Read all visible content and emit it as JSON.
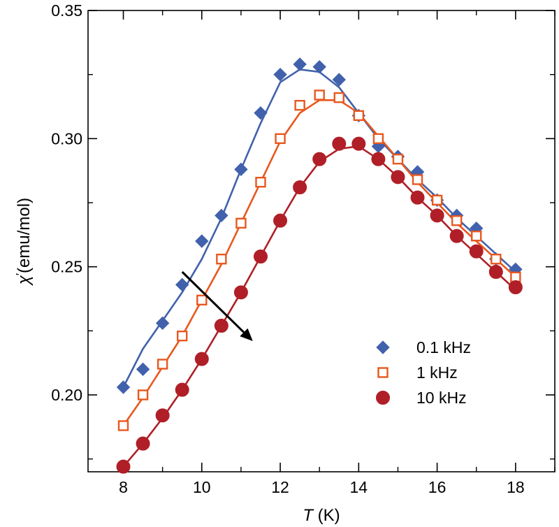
{
  "chart_data": {
    "type": "scatter",
    "title": "",
    "xlabel_italic": "T",
    "xlabel_unit": " (K)",
    "ylabel_symbol": "χ",
    "ylabel_prime": "′",
    "ylabel_unit": "(emu/mol)",
    "xlim": [
      7.1,
      19.0
    ],
    "ylim": [
      0.17,
      0.35
    ],
    "xticks": [
      8,
      10,
      12,
      14,
      16,
      18
    ],
    "xtick_labels": [
      "8",
      "10",
      "12",
      "14",
      "16",
      "18"
    ],
    "yticks": [
      0.2,
      0.25,
      0.3,
      0.35
    ],
    "ytick_labels": [
      "0.20",
      "0.25",
      "0.30",
      "0.35"
    ],
    "legend_position": "bottom-right",
    "arrow": {
      "from": [
        9.5,
        0.248
      ],
      "to": [
        11.3,
        0.221
      ],
      "color": "#000000"
    },
    "series": [
      {
        "name": "0.1 kHz",
        "marker": "diamond",
        "color": "#4161ac",
        "fill": true,
        "x": [
          8,
          8.5,
          9,
          9.5,
          10,
          10.5,
          11,
          11.5,
          12,
          12.5,
          13,
          13.5,
          14,
          14.5,
          15,
          15.5,
          16,
          16.5,
          17,
          17.5,
          18
        ],
        "y": [
          0.203,
          0.21,
          0.228,
          0.243,
          0.26,
          0.27,
          0.288,
          0.31,
          0.325,
          0.329,
          0.328,
          0.323,
          0.309,
          0.297,
          0.293,
          0.287,
          0.276,
          0.27,
          0.265,
          0.253,
          0.249
        ],
        "fit_x": [
          8,
          8.5,
          9,
          9.5,
          10,
          10.5,
          11,
          11.5,
          12,
          12.5,
          13,
          13.5,
          14,
          14.5,
          15,
          15.5,
          16,
          16.5,
          17,
          17.5,
          18
        ],
        "fit_y": [
          0.203,
          0.218,
          0.229,
          0.24,
          0.253,
          0.269,
          0.288,
          0.306,
          0.322,
          0.327,
          0.326,
          0.32,
          0.31,
          0.3,
          0.292,
          0.284,
          0.277,
          0.269,
          0.262,
          0.255,
          0.248
        ]
      },
      {
        "name": "1 kHz",
        "marker": "square-open",
        "color": "#e8581f",
        "fill": false,
        "x": [
          8,
          8.5,
          9,
          9.5,
          10,
          10.5,
          11,
          11.5,
          12,
          12.5,
          13,
          13.5,
          14,
          14.5,
          15,
          15.5,
          16,
          16.5,
          17,
          17.5,
          18
        ],
        "y": [
          0.188,
          0.2,
          0.212,
          0.223,
          0.237,
          0.253,
          0.267,
          0.283,
          0.3,
          0.313,
          0.317,
          0.316,
          0.309,
          0.3,
          0.292,
          0.284,
          0.276,
          0.268,
          0.262,
          0.253,
          0.246
        ],
        "fit_x": [
          8,
          8.5,
          9,
          9.5,
          10,
          10.5,
          11,
          11.5,
          12,
          12.5,
          13,
          13.5,
          14,
          14.5,
          15,
          15.5,
          16,
          16.5,
          17,
          17.5,
          18
        ],
        "fit_y": [
          0.188,
          0.199,
          0.211,
          0.223,
          0.237,
          0.251,
          0.267,
          0.283,
          0.299,
          0.31,
          0.315,
          0.315,
          0.31,
          0.301,
          0.292,
          0.283,
          0.275,
          0.267,
          0.26,
          0.253,
          0.246
        ]
      },
      {
        "name": "10 kHz",
        "marker": "circle",
        "color": "#b01f27",
        "fill": true,
        "x": [
          8,
          8.5,
          9,
          9.5,
          10,
          10.5,
          11,
          11.5,
          12,
          12.5,
          13,
          13.5,
          14,
          14.5,
          15,
          15.5,
          16,
          16.5,
          17,
          17.5,
          18
        ],
        "y": [
          0.172,
          0.181,
          0.192,
          0.202,
          0.214,
          0.227,
          0.24,
          0.254,
          0.268,
          0.281,
          0.292,
          0.298,
          0.298,
          0.292,
          0.285,
          0.277,
          0.27,
          0.262,
          0.256,
          0.248,
          0.242
        ],
        "fit_x": [
          8,
          8.5,
          9,
          9.5,
          10,
          10.5,
          11,
          11.5,
          12,
          12.5,
          13,
          13.5,
          14,
          14.5,
          15,
          15.5,
          16,
          16.5,
          17,
          17.5,
          18
        ],
        "fit_y": [
          0.172,
          0.181,
          0.191,
          0.202,
          0.214,
          0.227,
          0.24,
          0.254,
          0.268,
          0.281,
          0.291,
          0.296,
          0.297,
          0.292,
          0.285,
          0.277,
          0.27,
          0.262,
          0.255,
          0.248,
          0.241
        ]
      }
    ]
  }
}
